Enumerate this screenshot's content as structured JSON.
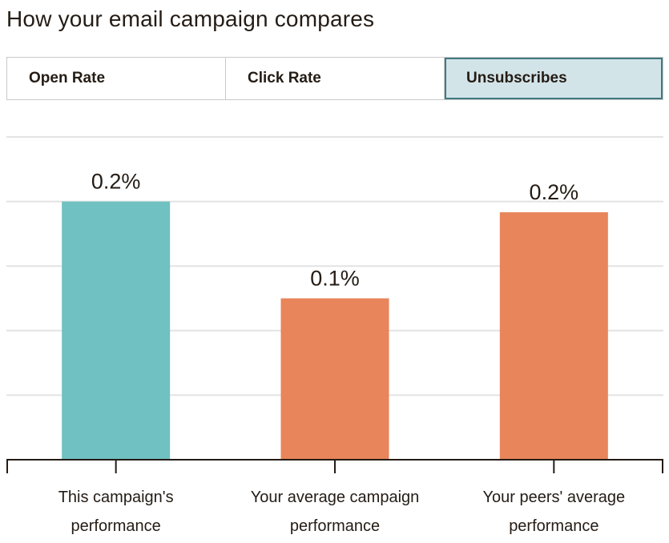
{
  "page": {
    "title": "How your email campaign compares"
  },
  "tabs": [
    {
      "label": "Open Rate",
      "active": false
    },
    {
      "label": "Click Rate",
      "active": false
    },
    {
      "label": "Unsubscribes",
      "active": true
    }
  ],
  "colors": {
    "campaign": "#70c1c1",
    "comparison": "#e8855a",
    "active_tab_bg": "#d3e4e8",
    "active_tab_border": "#3f7a80"
  },
  "chart_data": {
    "type": "bar",
    "categories": [
      [
        "This campaign's",
        "performance"
      ],
      [
        "Your average campaign",
        "performance"
      ],
      [
        "Your peers' average",
        "performance"
      ]
    ],
    "values": [
      0.24,
      0.15,
      0.23
    ],
    "value_labels": [
      "0.2%",
      "0.1%",
      "0.2%"
    ],
    "bar_colors": [
      "#70c1c1",
      "#e8855a",
      "#e8855a"
    ],
    "ylim": [
      0,
      0.3
    ],
    "grid": true,
    "title": "",
    "xlabel": "",
    "ylabel": ""
  }
}
